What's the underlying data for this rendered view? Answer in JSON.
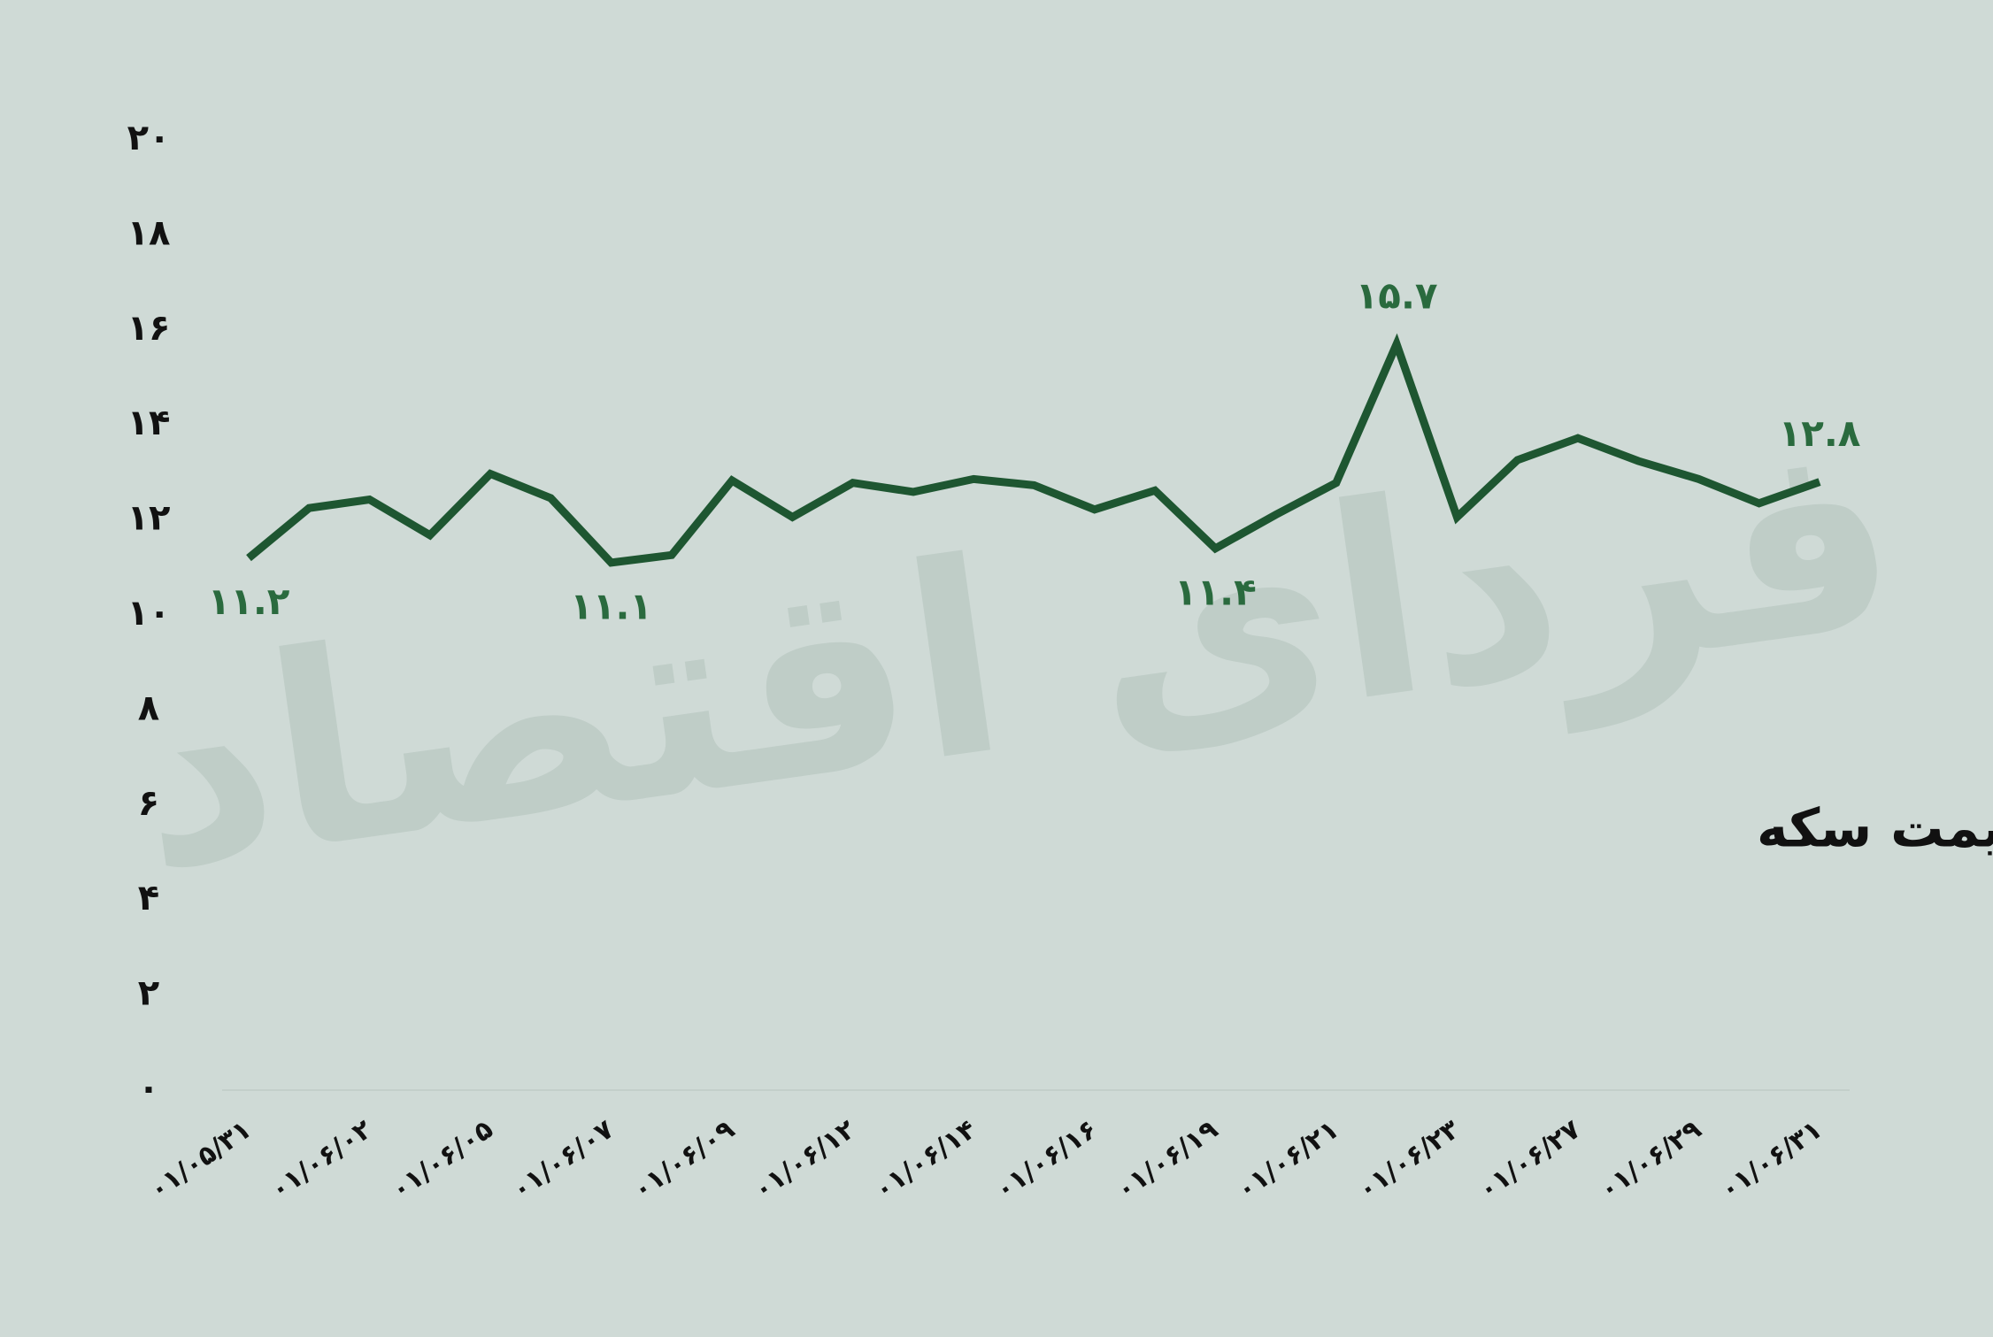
{
  "chart_data": {
    "type": "line",
    "title": "درصد حباب از قیمت سکه",
    "watermark": "فردای اقتصاد",
    "categories": [
      "۰۱/۰۵/۳۱",
      null,
      "۰۱/۰۶/۰۲",
      null,
      "۰۱/۰۶/۰۵",
      null,
      "۰۱/۰۶/۰۷",
      null,
      "۰۱/۰۶/۰۹",
      null,
      "۰۱/۰۶/۱۲",
      null,
      "۰۱/۰۶/۱۴",
      null,
      "۰۱/۰۶/۱۶",
      null,
      "۰۱/۰۶/۱۹",
      null,
      "۰۱/۰۶/۲۱",
      null,
      "۰۱/۰۶/۲۳",
      null,
      "۰۱/۰۶/۲۷",
      null,
      "۰۱/۰۶/۲۹",
      null,
      "۰۱/۰۶/۳۱"
    ],
    "series": [
      {
        "color": "#1e5631",
        "values": [
          11.2,
          12.25,
          12.43,
          11.68,
          12.97,
          12.46,
          11.1,
          11.26,
          12.83,
          12.06,
          12.78,
          12.59,
          12.86,
          12.73,
          12.22,
          12.62,
          11.4,
          12.11,
          12.78,
          15.7,
          12.06,
          13.26,
          13.72,
          13.24,
          12.86,
          12.35,
          12.8
        ],
        "value_labels": [
          "۱۱.۲",
          null,
          null,
          null,
          null,
          null,
          "۱۱.۱",
          null,
          null,
          null,
          null,
          null,
          null,
          null,
          null,
          null,
          "۱۱.۴",
          null,
          null,
          "۱۵.۷",
          null,
          null,
          null,
          null,
          null,
          null,
          "۱۲.۸"
        ]
      }
    ],
    "ylim": [
      0,
      20
    ],
    "yticks": [
      {
        "value": 0,
        "label": "۰"
      },
      {
        "value": 2,
        "label": "۲"
      },
      {
        "value": 4,
        "label": "۴"
      },
      {
        "value": 6,
        "label": "۶"
      },
      {
        "value": 8,
        "label": "۸"
      },
      {
        "value": 10,
        "label": "۱۰"
      },
      {
        "value": 12,
        "label": "۱۲"
      },
      {
        "value": 14,
        "label": "۱۴"
      },
      {
        "value": 16,
        "label": "۱۶"
      },
      {
        "value": 18,
        "label": "۱۸"
      },
      {
        "value": 20,
        "label": "۲۰"
      }
    ],
    "grid": false
  }
}
